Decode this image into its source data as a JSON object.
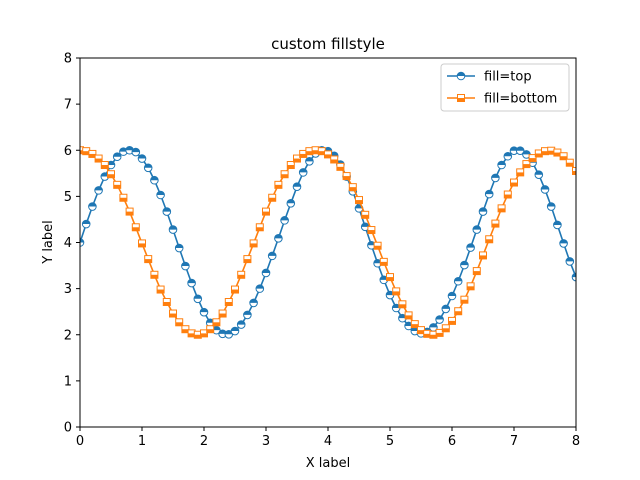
{
  "chart_data": {
    "type": "line",
    "title": "custom fillstyle",
    "xlabel": "X label",
    "ylabel": "Y label",
    "xlim": [
      0,
      8
    ],
    "ylim": [
      0,
      8
    ],
    "xticks": [
      "0",
      "1",
      "2",
      "3",
      "4",
      "5",
      "6",
      "7",
      "8"
    ],
    "yticks": [
      "0",
      "1",
      "2",
      "3",
      "4",
      "5",
      "6",
      "7",
      "8"
    ],
    "grid": false,
    "legend_position": "top-right",
    "series": [
      {
        "name": "fill=top",
        "color": "#1f77b4",
        "marker": "circle",
        "fillstyle": "top",
        "x": [
          0.0,
          0.1,
          0.2,
          0.3,
          0.4,
          0.5,
          0.6,
          0.7,
          0.8,
          0.9,
          1.0,
          1.1,
          1.2,
          1.3,
          1.4,
          1.5,
          1.6,
          1.7,
          1.8,
          1.9,
          2.0,
          2.1,
          2.2,
          2.3,
          2.4,
          2.5,
          2.6,
          2.7,
          2.8,
          2.9,
          3.0,
          3.1,
          3.2,
          3.3,
          3.4,
          3.5,
          3.6,
          3.7,
          3.8,
          3.9,
          4.0,
          4.1,
          4.2,
          4.3,
          4.4,
          4.5,
          4.6,
          4.7,
          4.8,
          4.9,
          5.0,
          5.1,
          5.2,
          5.3,
          5.4,
          5.5,
          5.6,
          5.7,
          5.8,
          5.9,
          6.0,
          6.1,
          6.2,
          6.3,
          6.4,
          6.5,
          6.6,
          6.7,
          6.8,
          6.9,
          7.0,
          7.1,
          7.2,
          7.3,
          7.4,
          7.5,
          7.6,
          7.7,
          7.8,
          7.9,
          8.0
        ],
        "y": [
          4.0,
          4.4,
          4.78,
          5.13,
          5.43,
          5.68,
          5.86,
          5.97,
          6.0,
          5.96,
          5.82,
          5.62,
          5.35,
          5.03,
          4.67,
          4.28,
          3.88,
          3.49,
          3.12,
          2.78,
          2.49,
          2.26,
          2.1,
          2.02,
          2.01,
          2.08,
          2.22,
          2.43,
          2.69,
          3.0,
          3.34,
          3.71,
          4.09,
          4.48,
          4.85,
          5.21,
          5.52,
          5.76,
          5.93,
          6.0,
          5.98,
          5.88,
          5.69,
          5.43,
          5.11,
          4.74,
          4.34,
          3.94,
          3.55,
          3.19,
          2.86,
          2.58,
          2.36,
          2.19,
          2.08,
          2.03,
          2.06,
          2.16,
          2.33,
          2.56,
          2.84,
          3.16,
          3.51,
          3.89,
          4.28,
          4.67,
          5.05,
          5.4,
          5.68,
          5.87,
          5.99,
          5.99,
          5.91,
          5.73,
          5.47,
          5.15,
          4.78,
          4.38,
          3.98,
          3.59,
          3.25
        ]
      },
      {
        "name": "fill=bottom",
        "color": "#ff7f0e",
        "marker": "square",
        "fillstyle": "bottom",
        "x": [
          0.0,
          0.1,
          0.2,
          0.3,
          0.4,
          0.5,
          0.6,
          0.7,
          0.8,
          0.9,
          1.0,
          1.1,
          1.2,
          1.3,
          1.4,
          1.5,
          1.6,
          1.7,
          1.8,
          1.9,
          2.0,
          2.1,
          2.2,
          2.3,
          2.4,
          2.5,
          2.6,
          2.7,
          2.8,
          2.9,
          3.0,
          3.1,
          3.2,
          3.3,
          3.4,
          3.5,
          3.6,
          3.7,
          3.8,
          3.9,
          4.0,
          4.1,
          4.2,
          4.3,
          4.4,
          4.5,
          4.6,
          4.7,
          4.8,
          4.9,
          5.0,
          5.1,
          5.2,
          5.3,
          5.4,
          5.5,
          5.6,
          5.7,
          5.8,
          5.9,
          6.0,
          6.1,
          6.2,
          6.3,
          6.4,
          6.5,
          6.6,
          6.7,
          6.8,
          6.9,
          7.0,
          7.1,
          7.2,
          7.3,
          7.4,
          7.5,
          7.6,
          7.7,
          7.8,
          7.9,
          8.0
        ],
        "y": [
          6.0,
          5.98,
          5.92,
          5.82,
          5.68,
          5.48,
          5.25,
          4.97,
          4.67,
          4.33,
          3.98,
          3.64,
          3.3,
          2.98,
          2.71,
          2.46,
          2.27,
          2.12,
          2.03,
          2.0,
          2.03,
          2.12,
          2.27,
          2.46,
          2.71,
          2.98,
          3.3,
          3.64,
          3.98,
          4.33,
          4.67,
          4.97,
          5.25,
          5.48,
          5.68,
          5.82,
          5.92,
          5.98,
          6.0,
          5.98,
          5.91,
          5.8,
          5.64,
          5.44,
          5.2,
          4.92,
          4.6,
          4.27,
          3.93,
          3.58,
          3.25,
          2.94,
          2.66,
          2.42,
          2.23,
          2.1,
          2.02,
          2.0,
          2.04,
          2.14,
          2.3,
          2.51,
          2.76,
          3.05,
          3.38,
          3.72,
          4.07,
          4.41,
          4.74,
          5.04,
          5.3,
          5.52,
          5.7,
          5.83,
          5.93,
          5.98,
          5.99,
          5.95,
          5.87,
          5.73,
          5.55
        ]
      }
    ]
  }
}
